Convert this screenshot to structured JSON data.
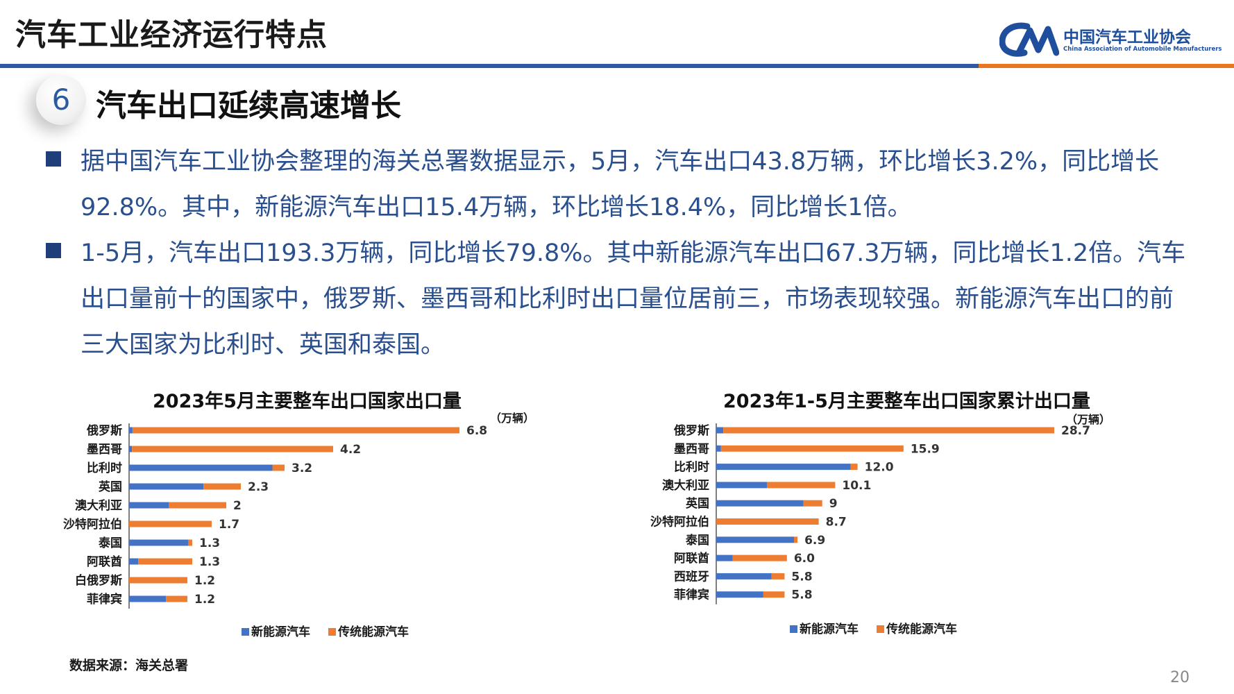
{
  "header": {
    "title": "汽车工业经济运行特点",
    "logo_cn": "中国汽车工业协会",
    "logo_en": "China Association of Automobile Manufacturers",
    "rule_colors": [
      "#2c5aa0",
      "#e87722"
    ]
  },
  "section": {
    "number": "6",
    "title": "汽车出口延续高速增长"
  },
  "bullets": [
    "据中国汽车工业协会整理的海关总署数据显示，5月，汽车出口43.8万辆，环比增长3.2%，同比增长92.8%。其中，新能源汽车出口15.4万辆，环比增长18.4%，同比增长1倍。",
    "1-5月，汽车出口193.3万辆，同比增长79.8%。其中新能源汽车出口67.3万辆，同比增长1.2倍。汽车出口量前十的国家中，俄罗斯、墨西哥和比利时出口量位居前三，市场表现较强。新能源汽车出口的前三大国家为比利时、英国和泰国。"
  ],
  "chart_data": [
    {
      "type": "bar",
      "orientation": "horizontal",
      "stacked": true,
      "title": "2023年5月主要整车出口国家出口量",
      "unit": "（万辆）",
      "categories": [
        "俄罗斯",
        "墨西哥",
        "比利时",
        "英国",
        "澳大利亚",
        "沙特阿拉伯",
        "泰国",
        "阿联酋",
        "白俄罗斯",
        "菲律宾"
      ],
      "series": [
        {
          "name": "新能源汽车",
          "color": "#4472c4",
          "values": [
            0.07,
            0.06,
            2.95,
            1.53,
            0.82,
            0.0,
            1.22,
            0.19,
            0.0,
            0.76
          ]
        },
        {
          "name": "传统能源汽车",
          "color": "#ed7d31",
          "values": [
            6.73,
            4.14,
            0.25,
            0.77,
            1.18,
            1.7,
            0.08,
            1.11,
            1.2,
            0.44
          ]
        }
      ],
      "totals": [
        "6.8",
        "4.2",
        "3.2",
        "2.3",
        "2",
        "1.7",
        "1.3",
        "1.3",
        "1.2",
        "1.2"
      ],
      "xlim": [
        0,
        8
      ],
      "legend": "bottom"
    },
    {
      "type": "bar",
      "orientation": "horizontal",
      "stacked": true,
      "title": "2023年1-5月主要整车出口国家累计出口量",
      "unit": "（万辆）",
      "categories": [
        "俄罗斯",
        "墨西哥",
        "比利时",
        "澳大利亚",
        "英国",
        "沙特阿拉伯",
        "泰国",
        "阿联酋",
        "西班牙",
        "菲律宾"
      ],
      "series": [
        {
          "name": "新能源汽车",
          "color": "#4472c4",
          "values": [
            0.6,
            0.4,
            11.4,
            4.3,
            7.4,
            0.0,
            6.6,
            1.4,
            4.7,
            4.0
          ]
        },
        {
          "name": "传统能源汽车",
          "color": "#ed7d31",
          "values": [
            28.1,
            15.5,
            0.6,
            5.8,
            1.6,
            8.7,
            0.3,
            4.6,
            1.1,
            1.8
          ]
        }
      ],
      "totals": [
        "28.7",
        "15.9",
        "12.0",
        "10.1",
        "9",
        "8.7",
        "6.9",
        "6.0",
        "5.8",
        "5.8"
      ],
      "xlim": [
        0,
        33
      ],
      "legend": "bottom"
    }
  ],
  "footer": {
    "source": "数据来源：海关总署",
    "page_number": "20"
  }
}
